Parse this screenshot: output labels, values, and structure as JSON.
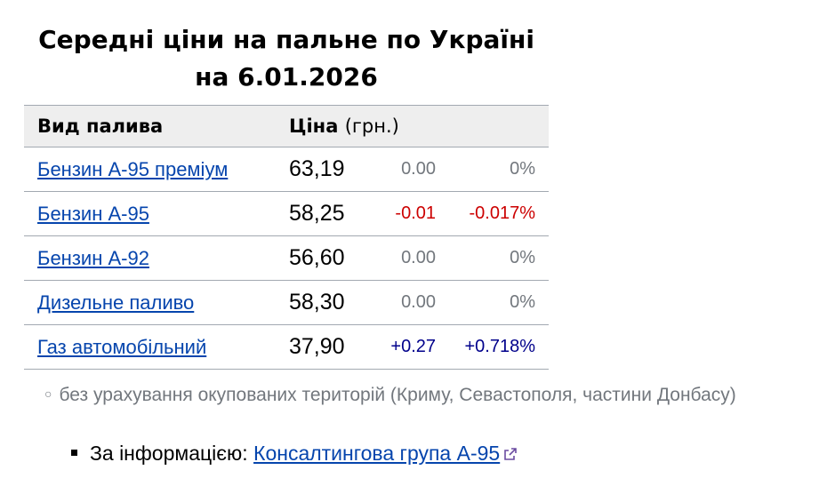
{
  "title_line1": "Середні ціни на пальне по Україні",
  "title_line2": "на 6.01.2026",
  "table": {
    "header_fuel": "Вид палива",
    "header_price": "Ціна",
    "header_unit": "(грн.)",
    "rows": [
      {
        "name": "Бензин А-95 преміум",
        "price": "63,19",
        "change": "0.00",
        "percent": "0%",
        "trend": "neutral"
      },
      {
        "name": "Бензин А-95",
        "price": "58,25",
        "change": "-0.01",
        "percent": "-0.017%",
        "trend": "neg"
      },
      {
        "name": "Бензин А-92",
        "price": "56,60",
        "change": "0.00",
        "percent": "0%",
        "trend": "neutral"
      },
      {
        "name": "Дизельне паливо",
        "price": "58,30",
        "change": "0.00",
        "percent": "0%",
        "trend": "neutral"
      },
      {
        "name": "Газ автомобільний",
        "price": "37,90",
        "change": "+0.27",
        "percent": "+0.718%",
        "trend": "pos"
      }
    ]
  },
  "note": "без урахування окупованих територій (Криму, Севастополя, частини Донбасу)",
  "source": {
    "label": "За інформацією:",
    "link": "Консалтингова група А-95",
    "icon": "external-link-icon"
  },
  "colors": {
    "link": "#0645ad",
    "negative": "#cc0000",
    "positive": "#00008b",
    "neutral": "#72777d",
    "header_bg": "#eeeeee"
  }
}
